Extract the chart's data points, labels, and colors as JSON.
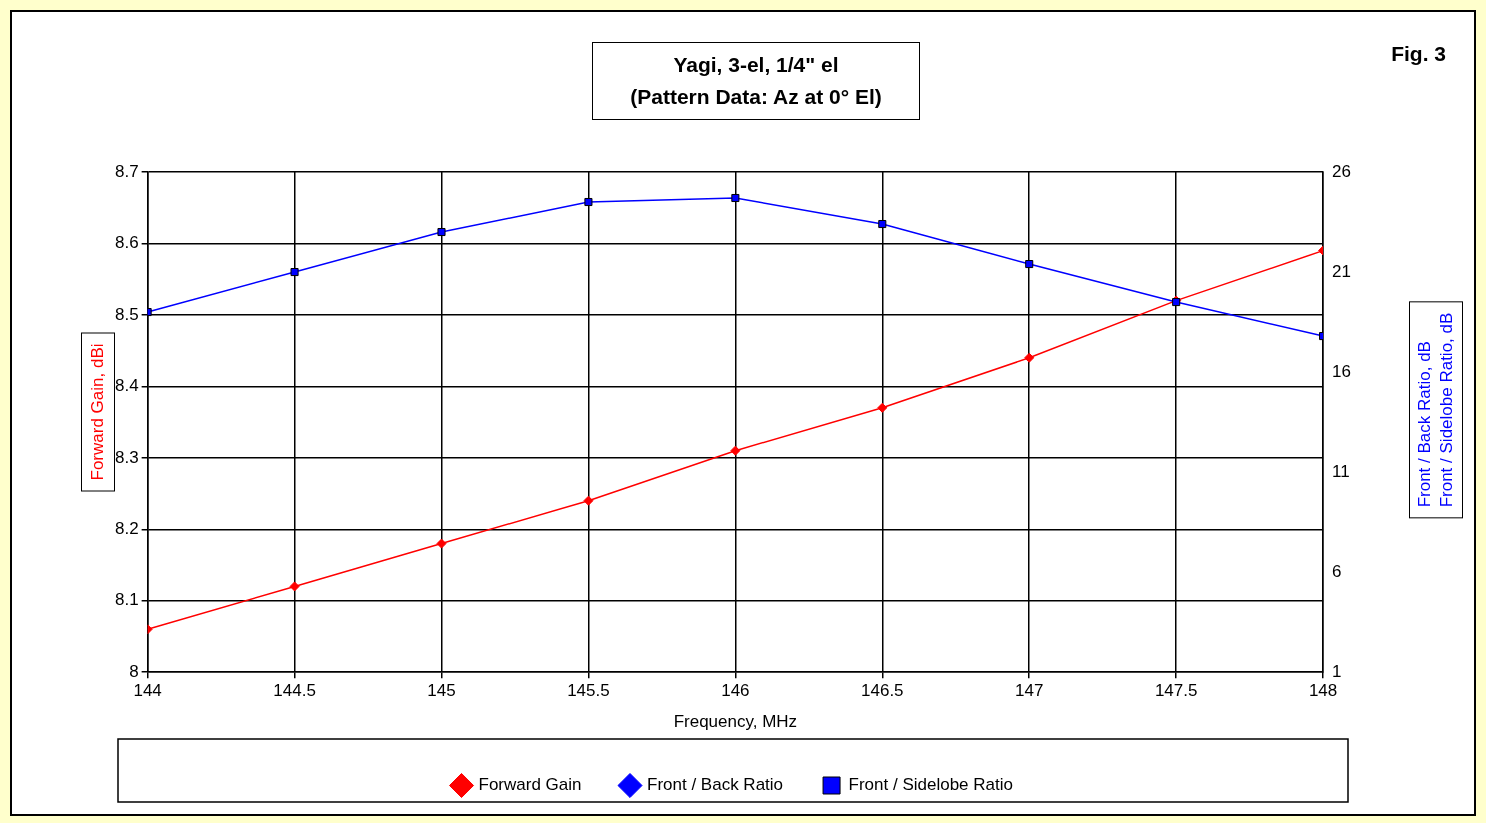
{
  "chart_data": {
    "type": "line",
    "title": "Yagi, 3-el, 1/4\" el\n(Pattern Data: Az at 0° El)",
    "xlabel": "Frequency, MHz",
    "ylabel": "Forward Gain,  dBi",
    "y2label": "Front / Back Ratio,  dB\nFront / Sidelobe Ratio,  dB",
    "annotations": [
      "Fig. 3"
    ],
    "x": [
      144,
      144.5,
      145,
      145.5,
      146,
      146.5,
      147,
      147.5,
      148
    ],
    "series": [
      {
        "name": "Forward Gain",
        "color": "#ff0000",
        "marker": "diamond",
        "values": [
          8.06,
          8.12,
          8.18,
          8.24,
          8.31,
          8.37,
          8.44,
          8.52,
          8.59
        ]
      },
      {
        "name": "Front / Back Ratio",
        "color": "#0000ff",
        "marker": "diamond",
        "axis": "y2",
        "values": [
          null,
          null,
          null,
          null,
          null,
          null,
          null,
          null,
          null
        ]
      },
      {
        "name": "Front / Sidelobe Ratio",
        "color": "#0000ff",
        "marker": "square",
        "axis": "y2",
        "values": [
          19.0,
          21.0,
          23.0,
          24.5,
          24.7,
          23.4,
          21.4,
          19.5,
          17.8
        ]
      }
    ],
    "xlim": [
      144,
      148
    ],
    "xticks": [
      144,
      144.5,
      145,
      145.5,
      146,
      146.5,
      147,
      147.5,
      148
    ],
    "ylim": [
      8,
      8.7
    ],
    "yticks": [
      8,
      8.1,
      8.2,
      8.3,
      8.4,
      8.5,
      8.6,
      8.7
    ],
    "y2lim": [
      1,
      26
    ],
    "y2ticks": [
      1,
      6,
      11,
      16,
      21,
      26
    ],
    "grid": true,
    "legend": "bottom"
  }
}
